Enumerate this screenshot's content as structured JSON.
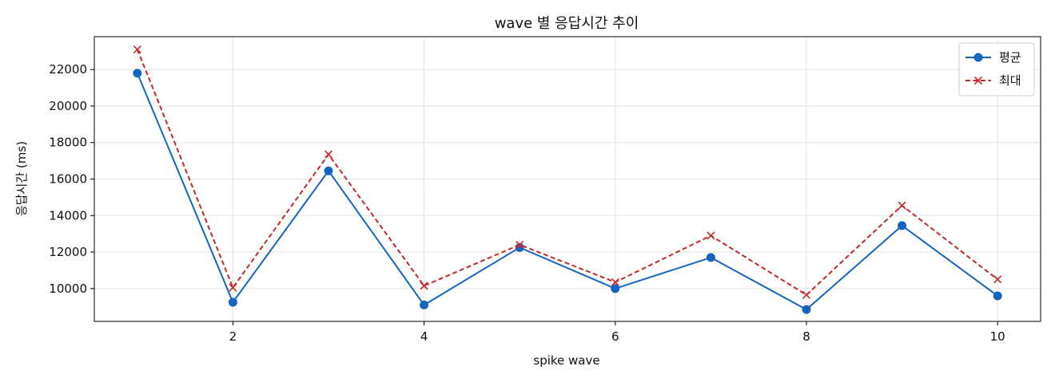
{
  "chart_data": {
    "type": "line",
    "title": "wave 별 응답시간 추이",
    "xlabel": "spike wave",
    "ylabel": "응답시간 (ms)",
    "x": [
      1,
      2,
      3,
      4,
      5,
      6,
      7,
      8,
      9,
      10
    ],
    "xlim": [
      0.55,
      10.45
    ],
    "ylim": [
      8200,
      23800
    ],
    "x_ticks": [
      2,
      4,
      6,
      8,
      10
    ],
    "y_ticks": [
      10000,
      12000,
      14000,
      16000,
      18000,
      20000,
      22000
    ],
    "grid": true,
    "legend_position": "top-right",
    "series": [
      {
        "name": "평균",
        "color": "#1565c0",
        "line_style": "solid",
        "marker": "circle",
        "values": [
          21800,
          9250,
          16450,
          9100,
          12250,
          10000,
          11700,
          8850,
          13450,
          9600
        ]
      },
      {
        "name": "최대",
        "color": "#c62828",
        "line_style": "dashed",
        "marker": "x",
        "values": [
          23100,
          10050,
          17350,
          10150,
          12400,
          10350,
          12900,
          9650,
          14550,
          10500
        ]
      }
    ]
  }
}
